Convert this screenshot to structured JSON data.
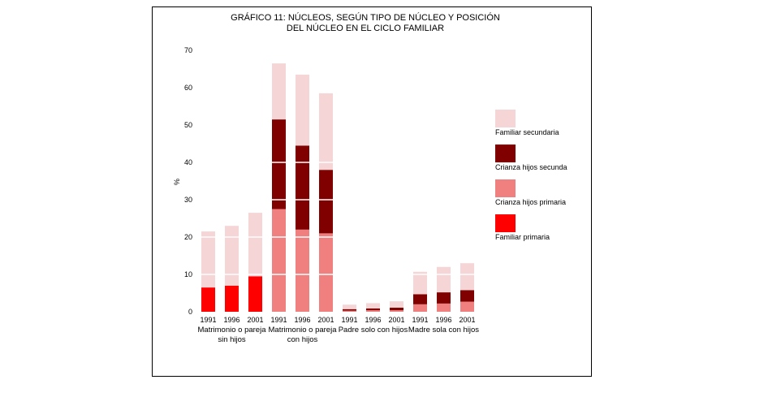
{
  "chart_data": {
    "type": "bar",
    "stacked": true,
    "title_line1": "GRÁFICO 11: NÚCLEOS, SEGÚN TIPO DE NÚCLEO Y POSICIÓN",
    "title_line2": "DEL NÚCLEO EN EL CICLO FAMILIAR",
    "ylabel": "%",
    "ylim": [
      0,
      70
    ],
    "yticks": [
      0,
      10,
      20,
      30,
      40,
      50,
      60,
      70
    ],
    "grid": false,
    "legend_position": "right",
    "groups": [
      {
        "label_line1": "Matrimonio o pareja",
        "label_line2": "sin hijos",
        "years": [
          "1991",
          "1996",
          "2001"
        ]
      },
      {
        "label_line1": "Matrimonio o pareja",
        "label_line2": "con hijos",
        "years": [
          "1991",
          "1996",
          "2001"
        ]
      },
      {
        "label_line1": "Padre solo con hijos",
        "label_line2": "",
        "years": [
          "1991",
          "1996",
          "2001"
        ]
      },
      {
        "label_line1": "Madre sola con hijos",
        "label_line2": "",
        "years": [
          "1991",
          "1996",
          "2001"
        ]
      }
    ],
    "series": [
      {
        "name": "Familiar primaria",
        "color": "#ff0000",
        "values": [
          6.5,
          7,
          9.5,
          0,
          0,
          0,
          0,
          0,
          0,
          0,
          0,
          0
        ]
      },
      {
        "name": "Crianza hijos primaria",
        "color": "#f08080",
        "values": [
          0,
          0,
          0,
          27.5,
          22,
          21,
          0.3,
          0.4,
          0.4,
          2,
          2.2,
          2.7
        ]
      },
      {
        "name": "Crianza hijos secunda",
        "color": "#800000",
        "values": [
          0,
          0,
          0,
          24,
          22.5,
          17,
          0.4,
          0.5,
          0.7,
          2.7,
          3,
          3.1
        ]
      },
      {
        "name": "Familiar secundaria",
        "color": "#f5d5d5",
        "values": [
          15,
          16,
          17,
          15,
          19,
          20.5,
          1.2,
          1.4,
          1.7,
          6,
          6.8,
          7.2
        ]
      }
    ],
    "legend_order": [
      "Familiar secundaria",
      "Crianza hijos secunda",
      "Crianza hijos primaria",
      "Familiar primaria"
    ]
  }
}
